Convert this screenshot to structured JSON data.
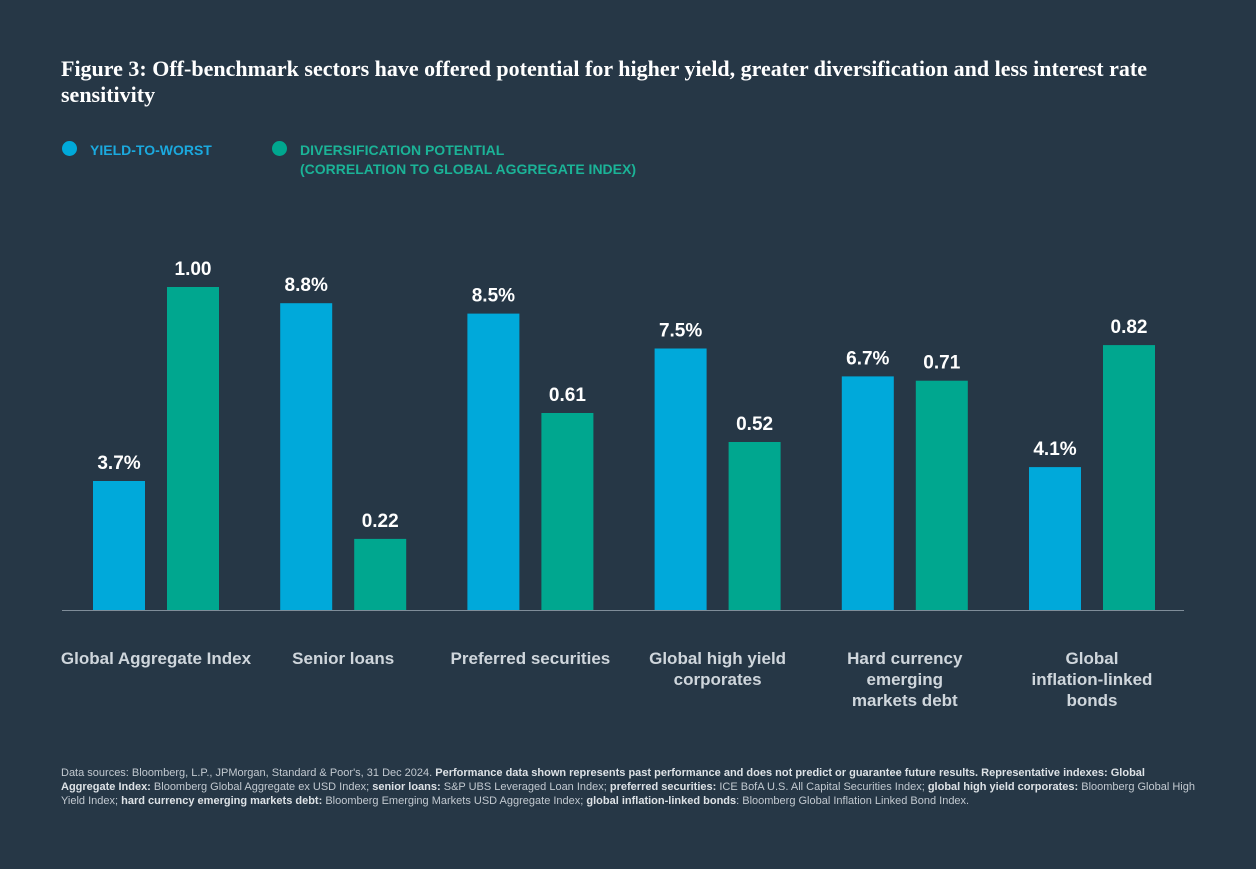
{
  "title": "Figure 3: Off-benchmark sectors have offered potential for higher yield, greater diversification and less interest rate sensitivity",
  "legend": {
    "yield": "YIELD-TO-WORST",
    "diversification_line1": "DIVERSIFICATION POTENTIAL",
    "diversification_line2": "(CORRELATION TO GLOBAL AGGREGATE INDEX)"
  },
  "colors": {
    "yield": "#00a9da",
    "diversification": "#00a78f",
    "background": "#263746",
    "axis": "#7f8d99"
  },
  "chart_data": {
    "type": "bar",
    "title": "Figure 3: Off-benchmark sectors have offered potential for higher yield, greater diversification and less interest rate sensitivity",
    "categories": [
      "Global Aggregate Index",
      "Senior loans",
      "Preferred securities",
      "Global high yield\ncorporates",
      "Hard currency\nemerging\nmarkets debt",
      "Global\ninflation-linked\nbonds"
    ],
    "series": [
      {
        "name": "YIELD-TO-WORST",
        "values": [
          3.7,
          8.8,
          8.5,
          7.5,
          6.7,
          4.1
        ],
        "labels": [
          "3.7%",
          "8.8%",
          "8.5%",
          "7.5%",
          "6.7%",
          "4.1%"
        ]
      },
      {
        "name": "DIVERSIFICATION POTENTIAL (CORRELATION TO GLOBAL AGGREGATE INDEX)",
        "values": [
          1.0,
          0.22,
          0.61,
          0.52,
          0.71,
          0.82
        ],
        "labels": [
          "1.00",
          "0.22",
          "0.61",
          "0.52",
          "0.71",
          "0.82"
        ]
      }
    ],
    "xlabel": "",
    "ylabel": "",
    "grid": false,
    "legend": "top-left"
  },
  "footnote": [
    {
      "t": "Data sources: Bloomberg, L.P., JPMorgan, Standard & Poor's, 31 Dec 2024. ",
      "b": false
    },
    {
      "t": "Performance data shown represents past performance and does not predict or guarantee future results. Representative indexes: Global Aggregate Index:",
      "b": true
    },
    {
      "t": " Bloomberg Global Aggregate ex USD Index; ",
      "b": false
    },
    {
      "t": "senior loans:",
      "b": true
    },
    {
      "t": " S&P UBS Leveraged Loan Index; ",
      "b": false
    },
    {
      "t": "preferred securities:",
      "b": true
    },
    {
      "t": " ICE BofA U.S. All Capital Securities Index; ",
      "b": false
    },
    {
      "t": "global high yield corporates:",
      "b": true
    },
    {
      "t": " Bloomberg Global High Yield Index; ",
      "b": false
    },
    {
      "t": "hard currency emerging markets debt:",
      "b": true
    },
    {
      "t": " Bloomberg Emerging Markets USD Aggregate Index; ",
      "b": false
    },
    {
      "t": "global inflation-linked bonds",
      "b": true
    },
    {
      "t": ": Bloomberg Global Inflation Linked Bond Index.",
      "b": false
    }
  ]
}
